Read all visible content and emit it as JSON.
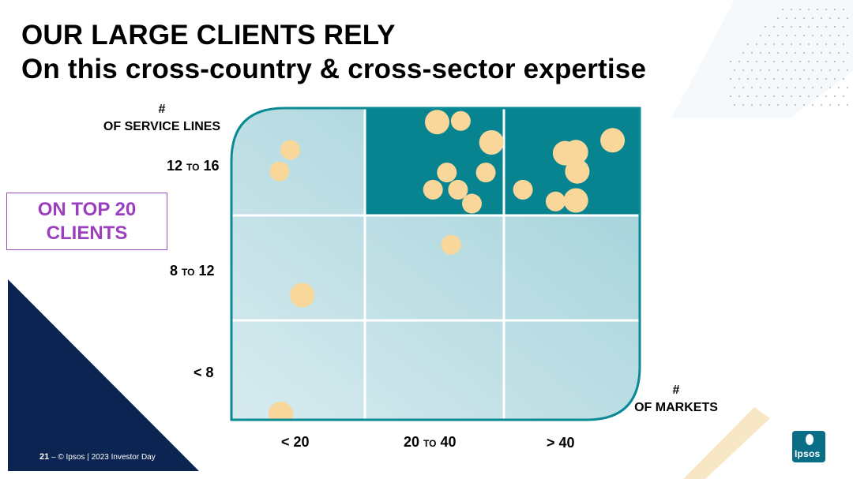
{
  "title": {
    "line1": "OUR LARGE CLIENTS RELY",
    "line2": "On this cross-country & cross-sector expertise"
  },
  "callout": {
    "line1": "ON TOP 20",
    "line2": "CLIENTS"
  },
  "colors": {
    "teal": "#0b8a96",
    "teal_dark": "#07848f",
    "bubble": "#f9d79b",
    "navy": "#0c2451",
    "purple": "#9b3fbf",
    "accent_beige": "#f8e7c4"
  },
  "chart_data": {
    "type": "scatter",
    "ylabel_line1": "#",
    "ylabel_line2": "OF SERVICE LINES",
    "xlabel_line1": "#",
    "xlabel_line2": "OF MARKETS",
    "x_categories": [
      {
        "pre": "< 20",
        "mid": "",
        "post": ""
      },
      {
        "pre": "20",
        "mid": "TO",
        "post": "40"
      },
      {
        "pre": "> 40",
        "mid": "",
        "post": ""
      }
    ],
    "y_categories": [
      {
        "pre": "< 8",
        "mid": "",
        "post": ""
      },
      {
        "pre": "8",
        "mid": "TO",
        "post": "12"
      },
      {
        "pre": "12",
        "mid": "TO",
        "post": "16"
      }
    ],
    "highlighted_cells": [
      [
        1,
        2
      ],
      [
        2,
        2
      ]
    ],
    "points": [
      {
        "x": 0.36,
        "y": 2.41,
        "size": "s"
      },
      {
        "x": 0.44,
        "y": 2.61,
        "size": "s"
      },
      {
        "x": 0.37,
        "y": 0.06,
        "size": "m"
      },
      {
        "x": 0.53,
        "y": 1.24,
        "size": "m"
      },
      {
        "x": 1.52,
        "y": 2.87,
        "size": "m"
      },
      {
        "x": 1.69,
        "y": 2.88,
        "size": "s"
      },
      {
        "x": 1.91,
        "y": 2.68,
        "size": "m"
      },
      {
        "x": 1.59,
        "y": 2.4,
        "size": "s"
      },
      {
        "x": 1.87,
        "y": 2.4,
        "size": "s"
      },
      {
        "x": 1.49,
        "y": 2.24,
        "size": "s"
      },
      {
        "x": 1.67,
        "y": 2.24,
        "size": "s"
      },
      {
        "x": 1.77,
        "y": 2.11,
        "size": "s"
      },
      {
        "x": 1.62,
        "y": 1.72,
        "size": "s"
      },
      {
        "x": 2.45,
        "y": 2.58,
        "size": "m"
      },
      {
        "x": 2.53,
        "y": 2.59,
        "size": "m"
      },
      {
        "x": 2.54,
        "y": 2.41,
        "size": "m"
      },
      {
        "x": 2.8,
        "y": 2.7,
        "size": "m"
      },
      {
        "x": 2.14,
        "y": 2.24,
        "size": "s"
      },
      {
        "x": 2.38,
        "y": 2.13,
        "size": "s"
      },
      {
        "x": 2.53,
        "y": 2.14,
        "size": "m"
      }
    ]
  },
  "footer": {
    "page": "21",
    "dash": "–",
    "text": "© Ipsos | 2023 Investor Day"
  },
  "logo": {
    "text": "Ipsos"
  }
}
